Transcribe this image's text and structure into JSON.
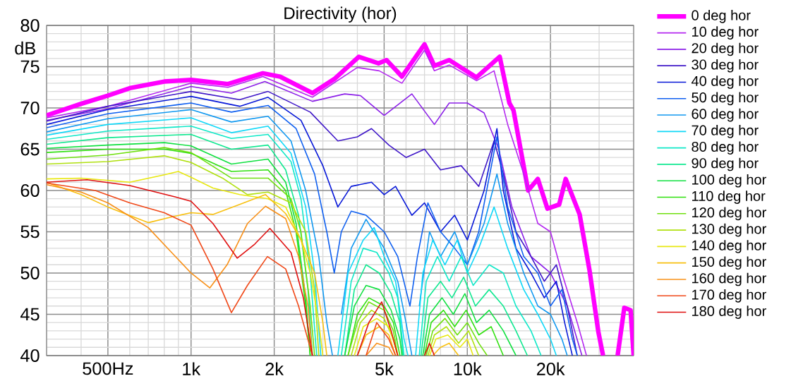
{
  "chart_data": {
    "type": "line",
    "title": "Directivity (hor)",
    "ylabel": "dB",
    "log": "x",
    "grid": true,
    "legend": "right",
    "xlim": [
      300,
      40000
    ],
    "ylim": [
      40,
      80
    ],
    "xticks": [
      {
        "value": 500,
        "label": "500Hz"
      },
      {
        "value": 1000,
        "label": "1k"
      },
      {
        "value": 2000,
        "label": "2k"
      },
      {
        "value": 5000,
        "label": "5k"
      },
      {
        "value": 10000,
        "label": "10k"
      },
      {
        "value": 20000,
        "label": "20k"
      }
    ],
    "yticks": [
      40,
      45,
      50,
      55,
      60,
      65,
      70,
      75,
      80
    ],
    "series": [
      {
        "name": "0 deg hor",
        "color": "#ff00ff",
        "x": [
          300,
          400,
          500,
          600,
          800,
          1000,
          1200,
          1360,
          1820,
          2100,
          2750,
          3300,
          4050,
          4770,
          5100,
          5800,
          7000,
          7600,
          8600,
          10800,
          13100,
          14200,
          14700,
          16600,
          18000,
          19500,
          21500,
          22700,
          25500,
          27700,
          29800,
          31000,
          33000,
          35000,
          37000,
          39000,
          40000
        ],
        "values": [
          69.1,
          70.5,
          71.5,
          72.4,
          73.2,
          73.4,
          73.1,
          72.9,
          74.2,
          73.8,
          71.8,
          73.5,
          76.2,
          75.4,
          75.8,
          73.8,
          77.7,
          75.1,
          75.8,
          73.7,
          76.2,
          70.6,
          69.7,
          60,
          61.4,
          57.8,
          58.3,
          61.4,
          57.1,
          50.3,
          42.9,
          40,
          null,
          40,
          45.8,
          45.5,
          40
        ]
      },
      {
        "name": "10 deg hor",
        "color": "#b428f0",
        "x": [
          300,
          500,
          1000,
          1360,
          1820,
          2750,
          4000,
          4800,
          5800,
          7000,
          7600,
          8600,
          10800,
          12500,
          14000,
          16000,
          18000,
          20000,
          22000,
          25000,
          27000
        ],
        "values": [
          68.8,
          70.2,
          73.0,
          72.5,
          73.8,
          71.3,
          74.9,
          74.5,
          73.0,
          77.0,
          74.5,
          75.2,
          73.3,
          74.5,
          68,
          62,
          56,
          55,
          50,
          44,
          40
        ]
      },
      {
        "name": "20 deg hor",
        "color": "#8c20e8",
        "x": [
          300,
          500,
          1000,
          1400,
          1850,
          2750,
          3600,
          4100,
          5000,
          6300,
          7600,
          8600,
          10000,
          11500,
          13000,
          14500,
          17000,
          20000,
          23000,
          26000
        ],
        "values": [
          68.5,
          69.9,
          72.6,
          71.8,
          73.2,
          70.8,
          71.7,
          71.5,
          69.1,
          71.7,
          68.0,
          70.6,
          70.6,
          69.4,
          65,
          58,
          52,
          50,
          46,
          40
        ]
      },
      {
        "name": "30 deg hor",
        "color": "#4018c8",
        "x": [
          300,
          500,
          1000,
          1500,
          1900,
          2700,
          3400,
          4000,
          4500,
          5200,
          6000,
          7000,
          8000,
          9500,
          11000,
          12500,
          13500,
          15000,
          17000,
          19000,
          21000,
          23000,
          25000
        ],
        "values": [
          68.4,
          70.2,
          72.0,
          71.0,
          72.0,
          69.5,
          66.0,
          66.5,
          67.5,
          65.5,
          64.0,
          65.0,
          62.5,
          63.0,
          60.5,
          66.0,
          62.0,
          55.0,
          52.0,
          49.0,
          51.0,
          46.0,
          40.0
        ]
      },
      {
        "name": "40 deg hor",
        "color": "#0818d8",
        "x": [
          300,
          500,
          1000,
          1500,
          1900,
          2500,
          3000,
          3400,
          3800,
          4500,
          5000,
          5500,
          6300,
          7000,
          8000,
          9000,
          10000,
          11500,
          12800,
          13500,
          15000,
          17000,
          19000,
          21000,
          22500,
          24000
        ],
        "values": [
          68.0,
          69.8,
          71.4,
          70.2,
          71.3,
          68.5,
          63.0,
          58.0,
          60.5,
          61.0,
          59.5,
          60.5,
          57.0,
          58.5,
          55.0,
          57.0,
          54.0,
          60.0,
          67.5,
          60.0,
          53.0,
          50.0,
          47.0,
          49.0,
          44.0,
          40.0
        ]
      },
      {
        "name": "50 deg hor",
        "color": "#1060f0",
        "x": [
          300,
          500,
          1000,
          1400,
          1900,
          2400,
          2800,
          3100,
          3300,
          3500,
          3800,
          4300,
          5000,
          5600,
          6200,
          6600,
          7200,
          8000,
          9000,
          10000,
          11000,
          12800,
          14000,
          16000,
          18000,
          20000,
          22000,
          24000,
          25000
        ],
        "values": [
          67.6,
          69.3,
          70.6,
          69.5,
          70.3,
          67.5,
          62,
          55,
          50,
          55,
          57.5,
          57,
          55,
          52,
          46,
          52,
          58.5,
          55,
          53,
          51,
          55,
          66.5,
          58,
          52,
          50,
          46,
          48,
          42,
          40
        ]
      },
      {
        "name": "60 deg hor",
        "color": "#1098f0",
        "x": [
          300,
          500,
          1000,
          1400,
          1900,
          2300,
          2600,
          2900,
          3100,
          3250,
          3420,
          3500,
          3800,
          4300,
          5000,
          5600,
          6000,
          6300,
          6500,
          6700,
          7300,
          8000,
          9000,
          10000,
          11500,
          12800,
          14000,
          16000,
          18000,
          20000,
          22000,
          23000
        ],
        "values": [
          67.1,
          68.7,
          69.8,
          68.3,
          69.0,
          66.0,
          60,
          52,
          44,
          40,
          null,
          45,
          53,
          56.5,
          53,
          49,
          44,
          40,
          null,
          46,
          55,
          52,
          55,
          51,
          56,
          62,
          56,
          50,
          46,
          45,
          42,
          40
        ]
      },
      {
        "name": "70 deg hor",
        "color": "#10d8f8",
        "x": [
          300,
          500,
          1000,
          1400,
          1900,
          2300,
          2600,
          2800,
          2950,
          3200,
          3400,
          3700,
          4200,
          4600,
          5000,
          5500,
          5900,
          6100,
          6300,
          6500,
          6900,
          7500,
          8300,
          9200,
          10000,
          11000,
          12500,
          14000,
          16000,
          18000,
          20000,
          21000
        ],
        "values": [
          66.7,
          68.0,
          68.8,
          67.0,
          67.8,
          64.5,
          58,
          50,
          40,
          null,
          40,
          50,
          54,
          55.5,
          52,
          49,
          42,
          40,
          null,
          40,
          50,
          54,
          51,
          54,
          50,
          53,
          58,
          53,
          48,
          45,
          42,
          40
        ]
      },
      {
        "name": "80 deg hor",
        "color": "#10e8c8",
        "x": [
          300,
          500,
          1000,
          1400,
          1900,
          2300,
          2500,
          2700,
          2850,
          3200,
          3500,
          3800,
          4200,
          4700,
          5200,
          5600,
          5900,
          6300,
          6700,
          7100,
          7800,
          8600,
          9500,
          10500,
          12000,
          13500,
          15000,
          17000,
          18500
        ],
        "values": [
          66.2,
          67.2,
          67.8,
          66.3,
          66.8,
          63.5,
          59,
          50,
          40,
          null,
          40,
          49,
          53,
          52.5,
          50,
          47,
          40,
          null,
          40,
          49,
          52,
          49,
          52,
          48.5,
          51,
          50,
          46,
          43,
          40
        ]
      },
      {
        "name": "90 deg hor",
        "color": "#10e890",
        "x": [
          300,
          500,
          1000,
          1400,
          1900,
          2200,
          2450,
          2650,
          2750,
          3200,
          3600,
          3900,
          4300,
          4800,
          5300,
          5700,
          5850,
          6300,
          6800,
          7200,
          8000,
          8800,
          9700,
          10700,
          12000,
          13500,
          15000,
          16500
        ],
        "values": [
          65.6,
          66.4,
          66.8,
          65.0,
          65.5,
          62.5,
          57,
          48,
          40,
          null,
          40,
          48,
          51,
          50,
          47.5,
          44,
          40,
          null,
          40,
          47,
          49,
          47,
          49.5,
          46,
          48,
          46,
          43,
          40
        ]
      },
      {
        "name": "100 deg hor",
        "color": "#10e040",
        "x": [
          300,
          500,
          800,
          1000,
          1400,
          1900,
          2200,
          2400,
          2600,
          2700,
          3200,
          3600,
          3900,
          4300,
          4800,
          5300,
          5700,
          5800,
          6300,
          6900,
          7300,
          8100,
          8900,
          9800,
          10800,
          12000,
          13500,
          15000
        ],
        "values": [
          65.1,
          65.5,
          65.8,
          65.4,
          63.2,
          63.8,
          61,
          56,
          47,
          40,
          null,
          40,
          46,
          48.5,
          48,
          45.5,
          42,
          40,
          null,
          40,
          45,
          47,
          45,
          47.5,
          44,
          45.5,
          43,
          40
        ]
      },
      {
        "name": "110 deg hor",
        "color": "#30e010",
        "x": [
          300,
          500,
          800,
          1000,
          1400,
          1900,
          2200,
          2400,
          2600,
          2700,
          3200,
          3700,
          4000,
          4400,
          5000,
          5400,
          5700,
          6300,
          7000,
          7400,
          8200,
          9000,
          9900,
          11000,
          12200,
          13500
        ],
        "values": [
          64.6,
          65.0,
          65.0,
          64.5,
          62.3,
          62.5,
          60,
          55,
          46,
          40,
          null,
          40,
          45,
          47,
          46,
          44,
          40,
          null,
          40,
          44,
          45.5,
          43.5,
          45.5,
          42.5,
          43.5,
          40
        ]
      },
      {
        "name": "120 deg hor",
        "color": "#70e010",
        "x": [
          300,
          500,
          800,
          1000,
          1400,
          1900,
          2300,
          2500,
          2700,
          2800,
          3200,
          3700,
          4000,
          4400,
          5000,
          5400,
          5600,
          6300,
          7100,
          7500,
          8300,
          9200,
          10000,
          11000,
          11800
        ],
        "values": [
          63.8,
          64.3,
          65.2,
          64.6,
          61.5,
          61.5,
          59,
          55,
          46,
          40,
          null,
          40,
          44,
          46.5,
          45.5,
          43,
          40,
          null,
          40,
          43,
          44.5,
          42.5,
          44,
          41.5,
          40
        ]
      },
      {
        "name": "130 deg hor",
        "color": "#b0e010",
        "x": [
          300,
          500,
          800,
          1000,
          1300,
          1600,
          1900,
          2300,
          2600,
          2800,
          2900,
          3300,
          3800,
          4100,
          4500,
          5000,
          5400,
          5600,
          6300,
          7200,
          7600,
          8400,
          9300,
          10100,
          11000
        ],
        "values": [
          63.2,
          63.5,
          64.2,
          63.4,
          61.5,
          59.5,
          59.8,
          58.5,
          55,
          48,
          40,
          null,
          40,
          44,
          45.5,
          44.5,
          42,
          40,
          null,
          40,
          42.5,
          43.5,
          41.5,
          43,
          40
        ]
      },
      {
        "name": "140 deg hor",
        "color": "#e8e810",
        "x": [
          300,
          400,
          600,
          800,
          900,
          1000,
          1200,
          1500,
          1900,
          2200,
          2500,
          2700,
          2900,
          3000,
          3400,
          3900,
          4200,
          4700,
          5200,
          5500,
          5600,
          6300,
          7300,
          7700,
          8500,
          9400,
          10000,
          10500
        ],
        "values": [
          61.4,
          61.5,
          61.0,
          61.9,
          62.3,
          61.6,
          60.3,
          59.5,
          59.0,
          58,
          54,
          50,
          44,
          40,
          null,
          40,
          43.5,
          44.5,
          43.5,
          41,
          40,
          null,
          40,
          42,
          42.5,
          41,
          42,
          40
        ]
      },
      {
        "name": "150 deg hor",
        "color": "#f8c010",
        "x": [
          300,
          400,
          500,
          700,
          850,
          1000,
          1200,
          1500,
          1860,
          2200,
          2500,
          2800,
          3000,
          3100,
          3500,
          4000,
          4300,
          4800,
          5200,
          5500,
          6300,
          7500,
          8000,
          8600,
          9300
        ],
        "values": [
          61.0,
          59.5,
          58.0,
          56.1,
          56.8,
          57.3,
          57.1,
          58.3,
          59.5,
          57.2,
          54,
          50,
          44,
          40,
          null,
          40,
          42.5,
          43.5,
          42.5,
          40,
          null,
          40,
          41,
          41.5,
          40
        ]
      },
      {
        "name": "160 deg hor",
        "color": "#f89018",
        "x": [
          300,
          400,
          500,
          700,
          850,
          1000,
          1170,
          1350,
          1600,
          1860,
          2200,
          2450,
          2650,
          2750,
          3500,
          4300,
          4700,
          5200,
          5400
        ],
        "values": [
          60.7,
          59.8,
          58.5,
          55.5,
          52.5,
          50.0,
          48.2,
          51,
          56,
          58.1,
          56.6,
          52,
          46,
          40,
          null,
          40,
          41.5,
          41,
          40
        ]
      },
      {
        "name": "170 deg hor",
        "color": "#f04818",
        "x": [
          300,
          450,
          600,
          800,
          1000,
          1200,
          1400,
          1600,
          1890,
          2200,
          2450,
          2750,
          3500,
          4300,
          4700,
          5200,
          5500
        ],
        "values": [
          60.9,
          60.0,
          58.5,
          57.3,
          55.8,
          50.5,
          45.2,
          48.5,
          52.0,
          50.5,
          46,
          40,
          null,
          40,
          44,
          42,
          40
        ]
      },
      {
        "name": "180 deg hor",
        "color": "#e01010",
        "x": [
          300,
          420,
          600,
          880,
          1000,
          1200,
          1470,
          1700,
          1930,
          2300,
          2550,
          2750,
          3500,
          4000,
          4400,
          4900,
          5300,
          5600,
          6300,
          7000,
          7300,
          7600
        ],
        "values": [
          61.0,
          61.3,
          60.6,
          59.2,
          58.7,
          56,
          51.8,
          53.5,
          55.4,
          52.5,
          47,
          40,
          null,
          40,
          44,
          46.5,
          43,
          40,
          null,
          40,
          41.5,
          40
        ]
      }
    ]
  }
}
